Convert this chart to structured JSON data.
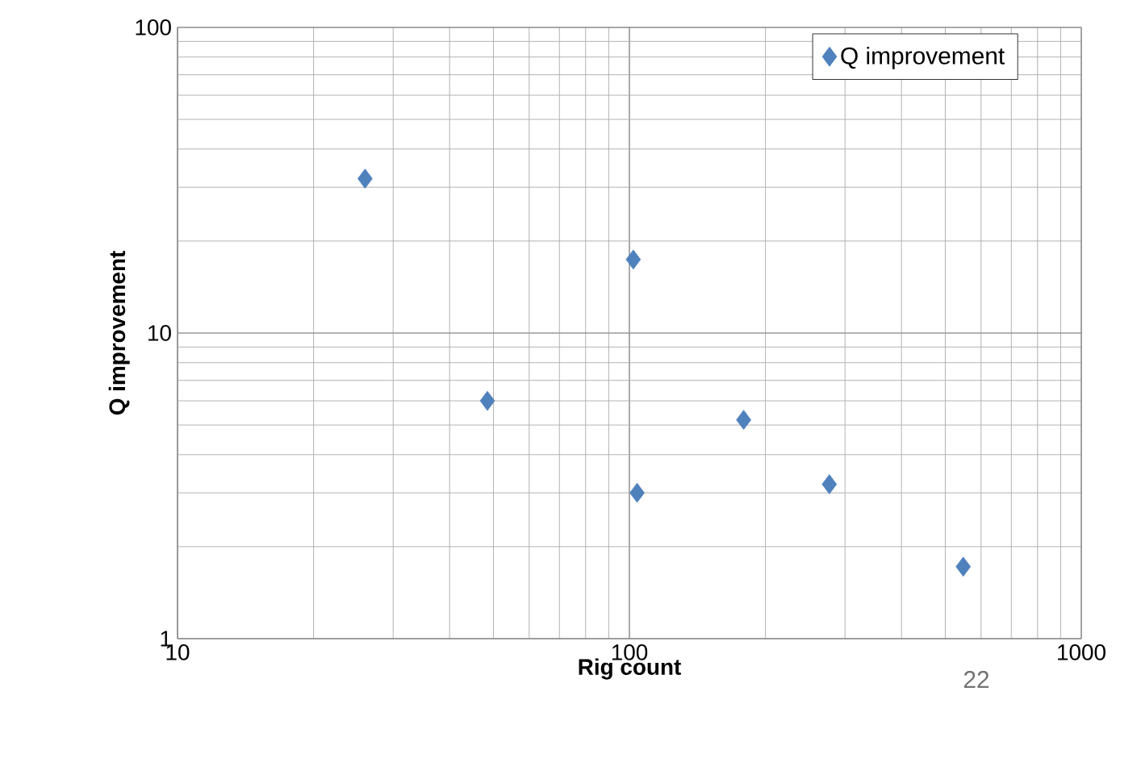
{
  "chart_data": {
    "type": "scatter",
    "xlabel": "Rig count",
    "ylabel": "Q improvement",
    "log": "xy",
    "grid": true,
    "legend": "top right",
    "marker": "diamond",
    "xlim": [
      10,
      1000
    ],
    "ylim": [
      1,
      100
    ],
    "xticks": [
      10,
      100,
      1000
    ],
    "yticks": [
      1,
      10,
      100
    ],
    "series": [
      {
        "name": "Q improvement",
        "color": "#4f81bd",
        "x": [
          26,
          48.5,
          102,
          104,
          179,
          277,
          548
        ],
        "values": [
          32,
          6.0,
          17.4,
          3.0,
          5.2,
          3.2,
          1.72
        ]
      }
    ],
    "annotations": [
      "22"
    ]
  }
}
